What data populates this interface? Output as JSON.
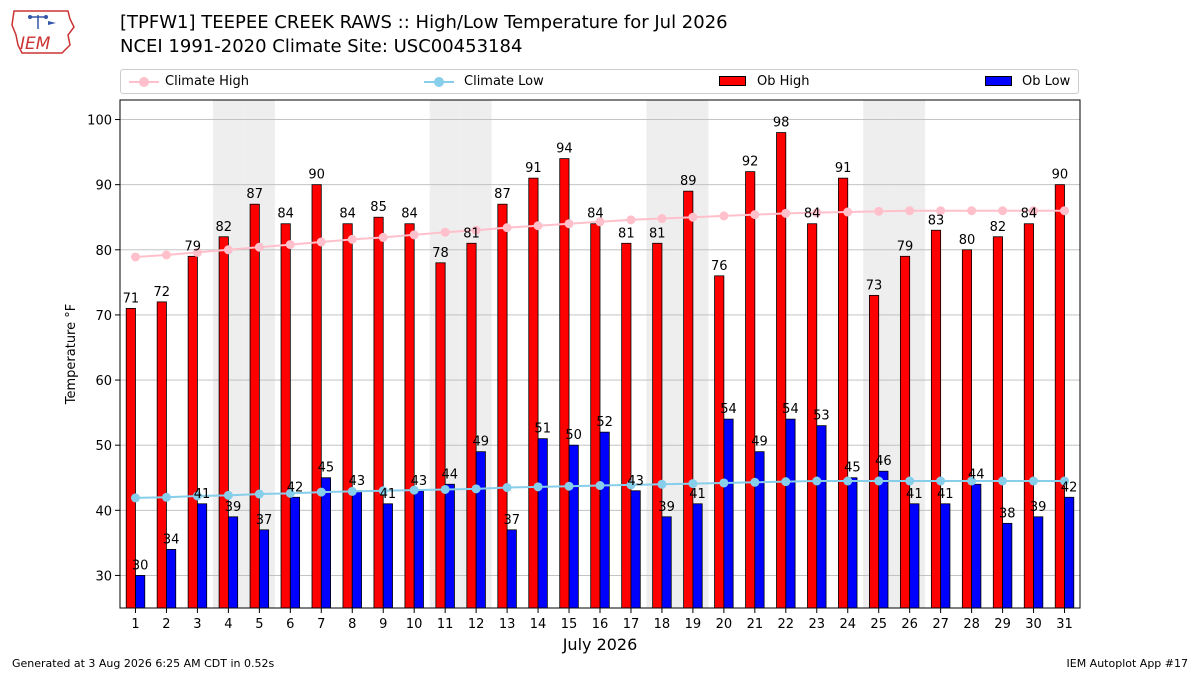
{
  "header": {
    "title_line1": "[TPFW1] TEEPEE CREEK RAWS :: High/Low Temperature for Jul 2026",
    "title_line2": "NCEI 1991-2020 Climate Site: USC00453184"
  },
  "logo": {
    "text": "IEM"
  },
  "footer": {
    "left": "Generated at 3 Aug 2026 6:25 AM CDT in 0.52s",
    "right": "IEM Autoplot App #17"
  },
  "colors": {
    "ob_high": "#ff0000",
    "ob_low": "#0000ff",
    "climate_high": "#ffc0cb",
    "climate_low": "#87ceeb",
    "weekend_band": "#eeeeee",
    "grid": "#bbbbbb"
  },
  "legend": {
    "climate_high": "Climate High",
    "climate_low": "Climate Low",
    "ob_high": "Ob High",
    "ob_low": "Ob Low"
  },
  "chart_data": {
    "type": "bar",
    "title": "[TPFW1] TEEPEE CREEK RAWS :: High/Low Temperature for Jul 2026",
    "xlabel": "July 2026",
    "ylabel": "Temperature °F",
    "ylim": [
      25,
      103
    ],
    "yticks": [
      30,
      40,
      50,
      60,
      70,
      80,
      90,
      100
    ],
    "grid": true,
    "legend_position": "top",
    "categories": [
      "1",
      "2",
      "3",
      "4",
      "5",
      "6",
      "7",
      "8",
      "9",
      "10",
      "11",
      "12",
      "13",
      "14",
      "15",
      "16",
      "17",
      "18",
      "19",
      "20",
      "21",
      "22",
      "23",
      "24",
      "25",
      "26",
      "27",
      "28",
      "29",
      "30",
      "31"
    ],
    "shaded_days": [
      4,
      5,
      11,
      12,
      18,
      19,
      25,
      26
    ],
    "series": [
      {
        "name": "Ob High",
        "kind": "bar",
        "values": [
          71,
          72,
          79,
          82,
          87,
          84,
          90,
          84,
          85,
          84,
          78,
          81,
          87,
          91,
          94,
          84,
          81,
          81,
          89,
          76,
          92,
          98,
          84,
          91,
          73,
          79,
          83,
          80,
          82,
          84,
          90
        ]
      },
      {
        "name": "Ob Low",
        "kind": "bar",
        "values": [
          30,
          34,
          41,
          39,
          37,
          42,
          45,
          43,
          41,
          43,
          44,
          49,
          37,
          51,
          50,
          52,
          43,
          39,
          41,
          54,
          49,
          54,
          53,
          45,
          46,
          41,
          41,
          44,
          38,
          39,
          42
        ]
      },
      {
        "name": "Climate High",
        "kind": "line",
        "values": [
          78.9,
          79.2,
          79.6,
          80.0,
          80.4,
          80.8,
          81.2,
          81.6,
          81.9,
          82.3,
          82.7,
          83.0,
          83.4,
          83.7,
          84.0,
          84.3,
          84.6,
          84.8,
          85.0,
          85.2,
          85.4,
          85.6,
          85.7,
          85.8,
          85.9,
          86.0,
          86.0,
          86.0,
          86.0,
          86.0,
          86.0
        ]
      },
      {
        "name": "Climate Low",
        "kind": "line",
        "values": [
          41.9,
          42.0,
          42.2,
          42.3,
          42.5,
          42.6,
          42.8,
          42.9,
          43.0,
          43.1,
          43.2,
          43.3,
          43.5,
          43.6,
          43.7,
          43.8,
          43.9,
          44.0,
          44.1,
          44.2,
          44.3,
          44.4,
          44.5,
          44.5,
          44.5,
          44.5,
          44.5,
          44.5,
          44.5,
          44.5,
          44.5
        ]
      }
    ]
  }
}
